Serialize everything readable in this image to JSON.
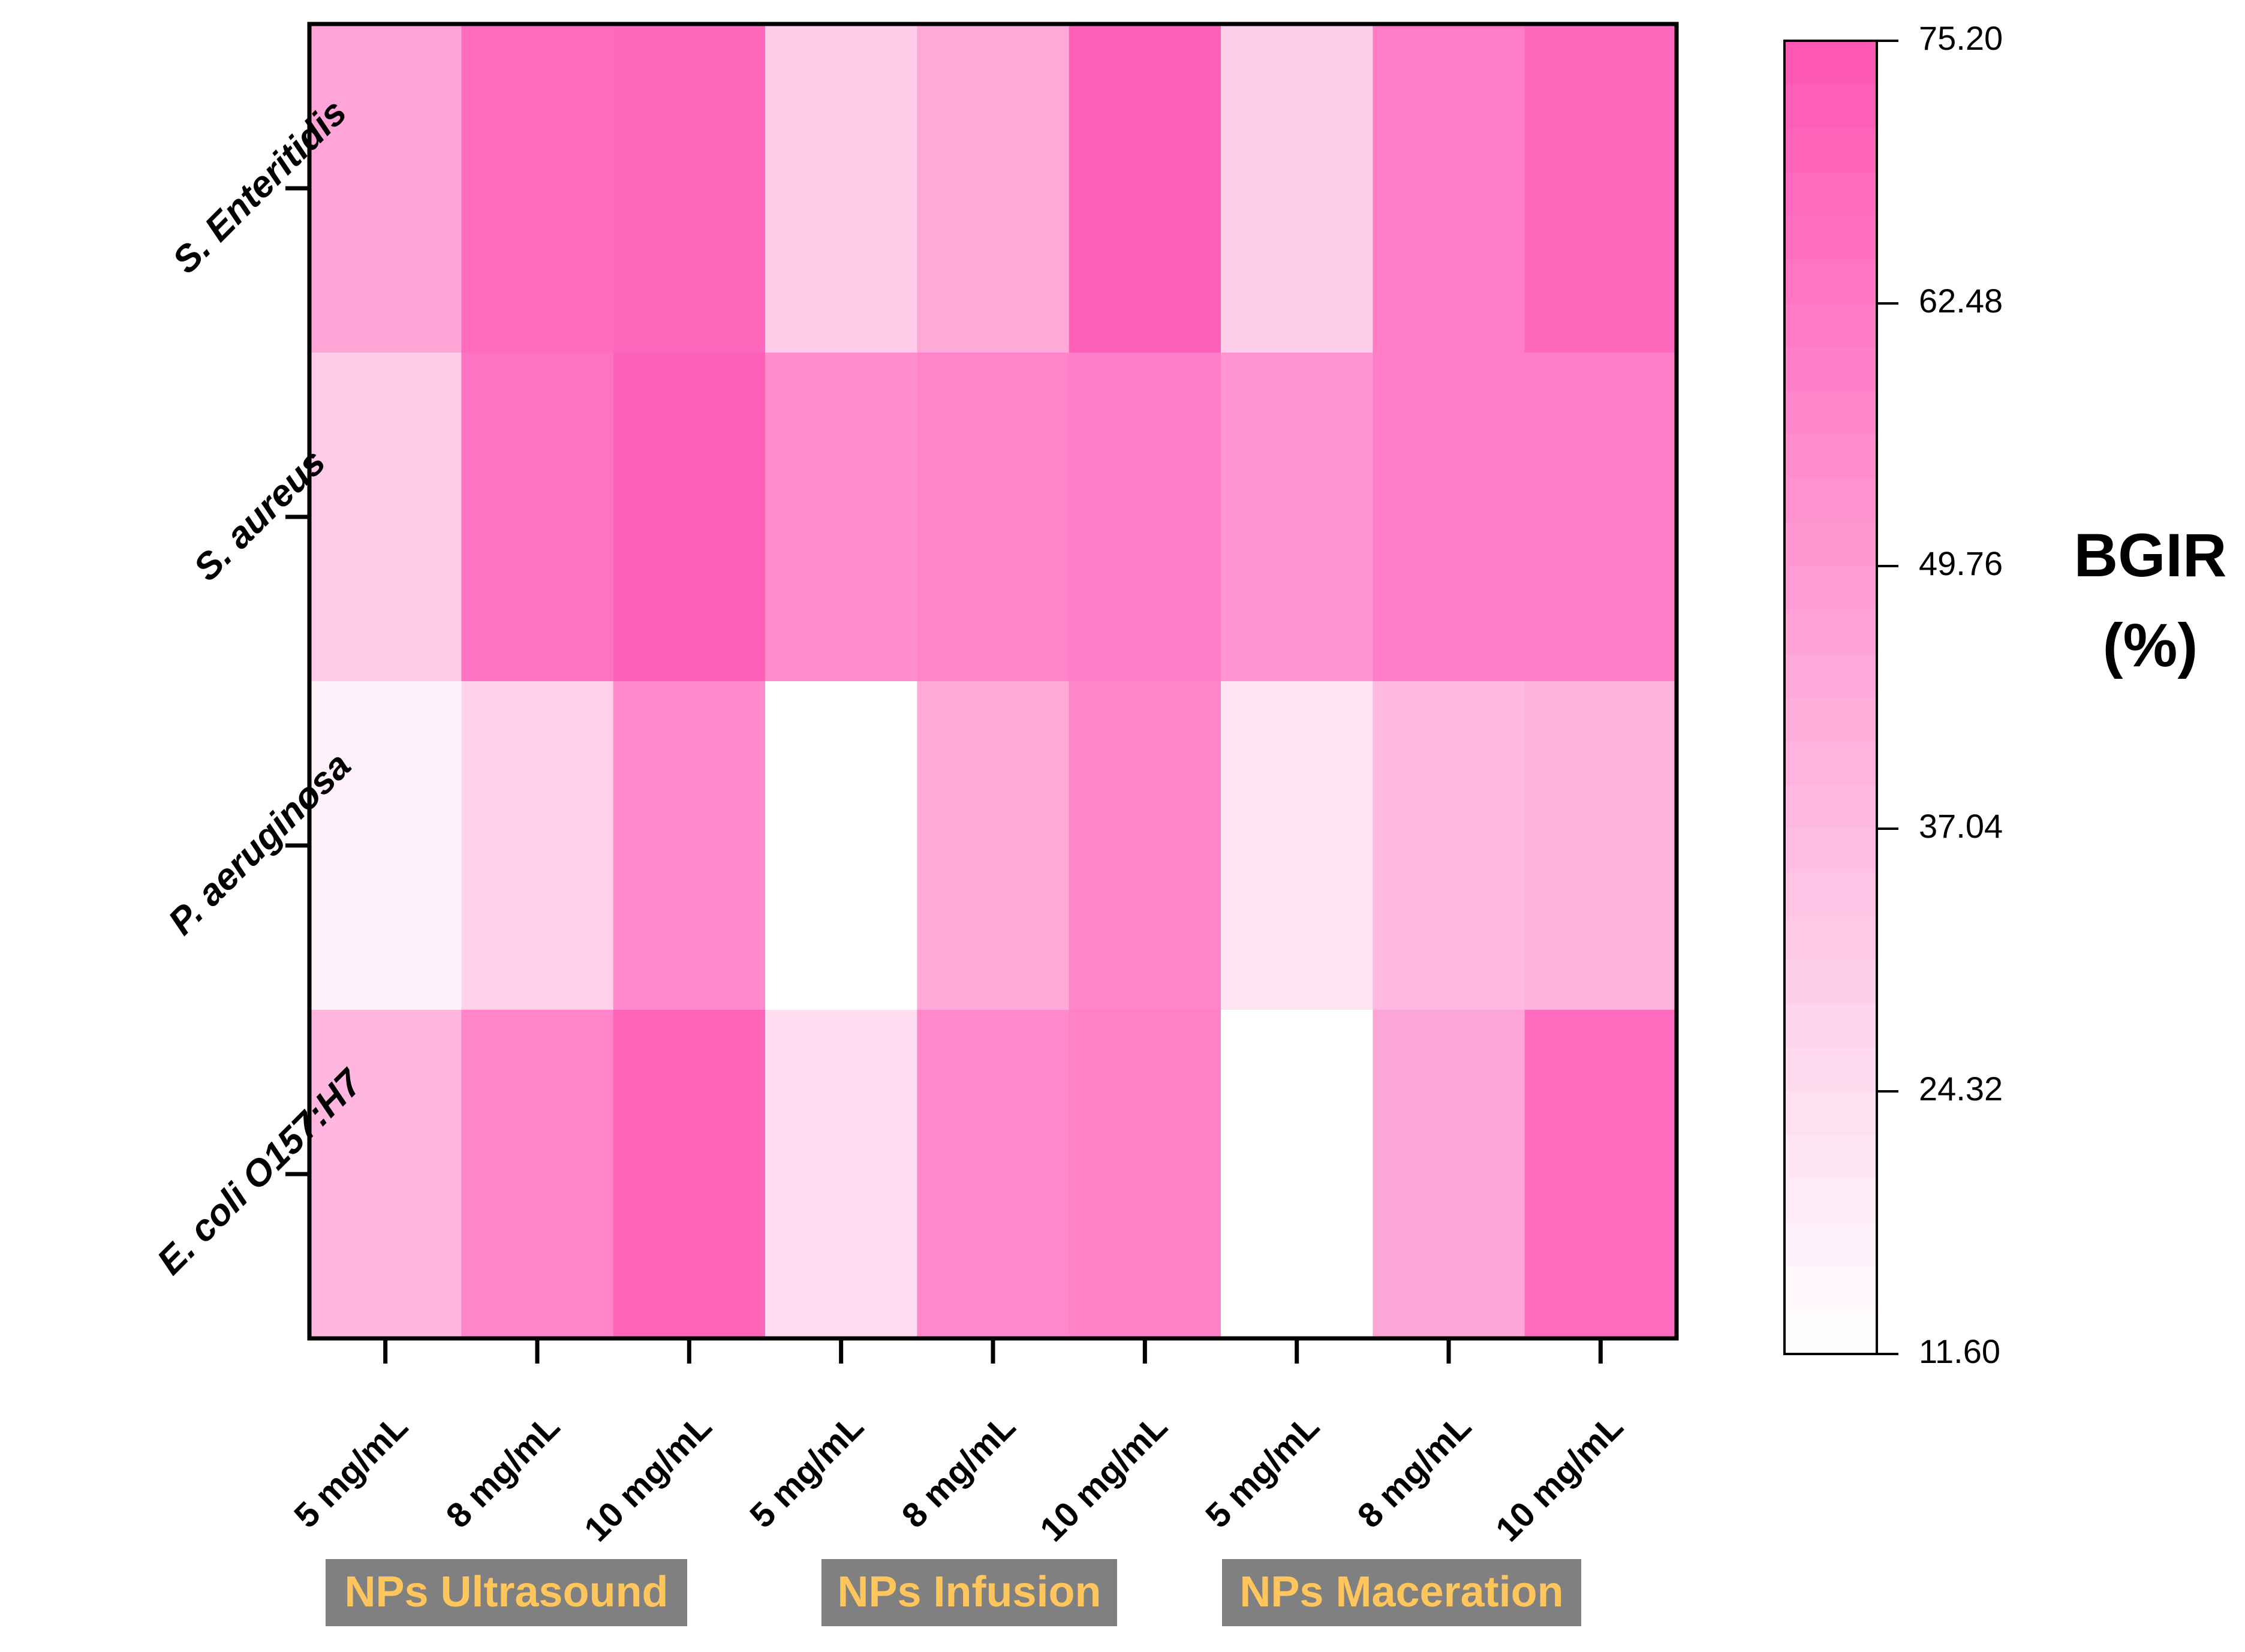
{
  "chart_data": {
    "type": "heatmap",
    "title": "",
    "rows": [
      "S. Enteritidis",
      "S. aureus",
      "P. aeruginosa",
      "E. coli O157:H7"
    ],
    "columns": [
      "5 mg/mL",
      "8 mg/mL",
      "10 mg/mL",
      "5 mg/mL",
      "8 mg/mL",
      "10 mg/mL",
      "5 mg/mL",
      "8 mg/mL",
      "10 mg/mL"
    ],
    "groups": [
      {
        "label": "NPs Ultrasound",
        "columns": [
          0,
          1,
          2
        ]
      },
      {
        "label": "NPs Infusion",
        "columns": [
          3,
          4,
          5
        ]
      },
      {
        "label": "NPs Maceration",
        "columns": [
          6,
          7,
          8
        ]
      }
    ],
    "values": [
      [
        46,
        67,
        68,
        31,
        44,
        71,
        30,
        61,
        68
      ],
      [
        31,
        64,
        71,
        55,
        58,
        60,
        52,
        61,
        60
      ],
      [
        17,
        29,
        56,
        11.6,
        44,
        57,
        22,
        38,
        41
      ],
      [
        39,
        58,
        70,
        24,
        56,
        59,
        11.6,
        45,
        67
      ]
    ],
    "colorbar": {
      "label_line1": "BGIR",
      "label_line2": "(%)",
      "min": 11.6,
      "max": 75.2,
      "ticks": [
        "75.20",
        "62.48",
        "49.76",
        "37.04",
        "24.32",
        "11.60"
      ],
      "tick_values": [
        75.2,
        62.48,
        49.76,
        37.04,
        24.32,
        11.6
      ],
      "low_color": "#ffffff",
      "high_color": "#ff56b5",
      "levels": 30
    },
    "group_label_bg": "#808080",
    "group_label_color": "#fec65c"
  }
}
